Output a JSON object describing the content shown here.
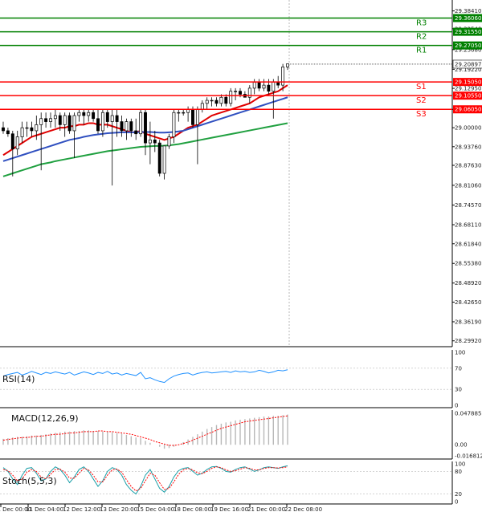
{
  "chart_data": [
    {
      "type": "candlestick",
      "panel": "price",
      "ylim": [
        28.28,
        29.42
      ],
      "y_ticks": [
        "29.38410",
        "29.32540",
        "29.25680",
        "29.19220",
        "29.12950",
        "29.06050",
        "29.00000",
        "28.93760",
        "28.87630",
        "28.81060",
        "28.74570",
        "28.68110",
        "28.61840",
        "28.55380",
        "28.48920",
        "28.42650",
        "28.36190",
        "28.29920"
      ],
      "x_ticks": [
        "11 Dec 00:00",
        "11 Dec 04:00",
        "12 Dec 12:00",
        "13 Dec 20:00",
        "15 Dec 04:00",
        "18 Dec 08:00",
        "19 Dec 16:00",
        "21 Dec 00:00",
        "22 Dec 08:00"
      ],
      "current_price": "29.20897",
      "levels": [
        {
          "name": "R3",
          "value": 29.3606,
          "label": "29.36060",
          "color": "#008000"
        },
        {
          "name": "R2",
          "value": 29.3155,
          "label": "29.31550",
          "color": "#008000"
        },
        {
          "name": "R1",
          "value": 29.2705,
          "label": "29.27050",
          "color": "#008000"
        },
        {
          "name": "S1",
          "value": 29.1505,
          "label": "29.15050",
          "color": "#ff0000"
        },
        {
          "name": "S2",
          "value": 29.1055,
          "label": "29.10550",
          "color": "#ff0000"
        },
        {
          "name": "S3",
          "value": 29.0605,
          "label": "29.06050",
          "color": "#ff0000"
        }
      ],
      "candles": [
        [
          29.0,
          29.02,
          28.98,
          28.99
        ],
        [
          28.99,
          29.0,
          28.97,
          28.98
        ],
        [
          28.98,
          28.99,
          28.84,
          28.93
        ],
        [
          28.93,
          28.99,
          28.91,
          28.97
        ],
        [
          28.97,
          29.02,
          28.95,
          29.0
        ],
        [
          29.0,
          29.02,
          28.97,
          29.0
        ],
        [
          29.0,
          29.02,
          28.97,
          28.99
        ],
        [
          28.99,
          29.04,
          28.96,
          29.01
        ],
        [
          29.01,
          29.05,
          28.86,
          29.03
        ],
        [
          29.03,
          29.05,
          29.0,
          29.02
        ],
        [
          29.02,
          29.05,
          29.0,
          29.03
        ],
        [
          29.03,
          29.06,
          29.0,
          29.04
        ],
        [
          29.04,
          29.05,
          28.99,
          29.01
        ],
        [
          29.01,
          29.05,
          28.97,
          29.04
        ],
        [
          29.04,
          29.05,
          28.98,
          28.99
        ],
        [
          28.99,
          29.05,
          28.9,
          29.04
        ],
        [
          29.04,
          29.06,
          29.02,
          29.05
        ],
        [
          29.05,
          29.06,
          29.01,
          29.04
        ],
        [
          29.04,
          29.06,
          29.02,
          29.05
        ],
        [
          29.05,
          29.06,
          29.02,
          29.03
        ],
        [
          29.03,
          29.06,
          28.98,
          28.99
        ],
        [
          28.99,
          29.06,
          28.97,
          29.05
        ],
        [
          29.05,
          29.06,
          29.0,
          29.02
        ],
        [
          29.02,
          29.06,
          28.81,
          29.04
        ],
        [
          29.04,
          29.06,
          28.97,
          29.02
        ],
        [
          29.02,
          29.04,
          28.97,
          28.99
        ],
        [
          28.99,
          29.03,
          28.96,
          29.02
        ],
        [
          29.02,
          29.03,
          28.97,
          28.99
        ],
        [
          28.99,
          29.03,
          28.96,
          28.98
        ],
        [
          28.98,
          29.06,
          28.97,
          29.05
        ],
        [
          29.05,
          29.06,
          28.91,
          28.95
        ],
        [
          28.95,
          29.02,
          28.88,
          28.96
        ],
        [
          28.96,
          28.99,
          28.92,
          28.95
        ],
        [
          28.95,
          28.96,
          28.84,
          28.85
        ],
        [
          28.85,
          28.94,
          28.83,
          28.94
        ],
        [
          28.94,
          28.98,
          28.93,
          28.97
        ],
        [
          28.97,
          29.06,
          28.95,
          29.05
        ],
        [
          29.05,
          29.06,
          29.02,
          29.05
        ],
        [
          29.05,
          29.06,
          29.04,
          29.05
        ],
        [
          29.05,
          29.07,
          29.02,
          29.06
        ],
        [
          29.06,
          29.07,
          29.0,
          29.01
        ],
        [
          29.01,
          29.07,
          28.88,
          29.06
        ],
        [
          29.06,
          29.09,
          29.05,
          29.08
        ],
        [
          29.08,
          29.1,
          29.06,
          29.09
        ],
        [
          29.09,
          29.1,
          29.07,
          29.09
        ],
        [
          29.09,
          29.1,
          29.07,
          29.08
        ],
        [
          29.08,
          29.11,
          29.07,
          29.1
        ],
        [
          29.1,
          29.11,
          29.07,
          29.08
        ],
        [
          29.08,
          29.13,
          29.07,
          29.12
        ],
        [
          29.12,
          29.13,
          29.09,
          29.12
        ],
        [
          29.12,
          29.13,
          29.1,
          29.11
        ],
        [
          29.11,
          29.12,
          29.1,
          29.1
        ],
        [
          29.1,
          29.14,
          29.08,
          29.13
        ],
        [
          29.13,
          29.16,
          29.11,
          29.15
        ],
        [
          29.15,
          29.16,
          29.12,
          29.13
        ],
        [
          29.13,
          29.16,
          29.12,
          29.14
        ],
        [
          29.14,
          29.16,
          29.11,
          29.12
        ],
        [
          29.12,
          29.16,
          29.03,
          29.15
        ],
        [
          29.15,
          29.17,
          29.13,
          29.14
        ],
        [
          29.14,
          29.21,
          29.12,
          29.2
        ],
        [
          29.2,
          29.21,
          29.19,
          29.21
        ]
      ],
      "ma_series": [
        {
          "color": "#e00000",
          "values": [
            28.91,
            28.92,
            28.93,
            28.94,
            28.95,
            28.96,
            28.97,
            28.975,
            28.98,
            28.985,
            28.99,
            28.995,
            29.0,
            29.0,
            29.005,
            29.005,
            29.01,
            29.01,
            29.015,
            29.015,
            29.01,
            29.01,
            29.01,
            29.005,
            29.0,
            28.995,
            28.99,
            28.985,
            28.985,
            28.99,
            28.98,
            28.975,
            28.97,
            28.965,
            28.96,
            28.965,
            28.97,
            28.98,
            28.99,
            29.0,
            29.005,
            29.01,
            29.02,
            29.03,
            29.04,
            29.045,
            29.05,
            29.055,
            29.06,
            29.065,
            29.07,
            29.075,
            29.08,
            29.09,
            29.1,
            29.105,
            29.11,
            29.115,
            29.12,
            29.13,
            29.14
          ]
        },
        {
          "color": "#3050c0",
          "values": [
            28.89,
            28.895,
            28.9,
            28.905,
            28.91,
            28.915,
            28.92,
            28.925,
            28.93,
            28.935,
            28.94,
            28.945,
            28.95,
            28.955,
            28.96,
            28.963,
            28.966,
            28.97,
            28.973,
            28.976,
            28.978,
            28.98,
            28.982,
            28.983,
            28.984,
            28.985,
            28.985,
            28.985,
            28.985,
            28.986,
            28.986,
            28.986,
            28.985,
            28.984,
            28.984,
            28.985,
            28.986,
            28.988,
            28.99,
            28.995,
            29.0,
            29.005,
            29.01,
            29.015,
            29.02,
            29.025,
            29.03,
            29.035,
            29.04,
            29.045,
            29.05,
            29.055,
            29.06,
            29.065,
            29.07,
            29.075,
            29.08,
            29.085,
            29.09,
            29.095,
            29.1
          ]
        },
        {
          "color": "#20a040",
          "values": [
            28.84,
            28.845,
            28.85,
            28.855,
            28.86,
            28.865,
            28.87,
            28.875,
            28.88,
            28.883,
            28.886,
            28.89,
            28.893,
            28.896,
            28.899,
            28.902,
            28.905,
            28.908,
            28.911,
            28.914,
            28.917,
            28.92,
            28.923,
            28.925,
            28.927,
            28.929,
            28.931,
            28.933,
            28.935,
            28.937,
            28.938,
            28.939,
            28.94,
            28.94,
            28.941,
            28.942,
            28.944,
            28.946,
            28.949,
            28.952,
            28.955,
            28.958,
            28.961,
            28.964,
            28.967,
            28.97,
            28.973,
            28.976,
            28.979,
            28.982,
            28.985,
            28.988,
            28.991,
            28.994,
            28.997,
            29.0,
            29.003,
            29.006,
            29.009,
            29.012,
            29.015
          ]
        }
      ]
    },
    {
      "type": "line",
      "panel": "rsi",
      "label": "RSI(14)",
      "ylim": [
        0,
        100
      ],
      "y_ticks": [
        "100",
        "70",
        "30",
        "0"
      ],
      "series": [
        {
          "color": "#1e90ff",
          "values": [
            55,
            58,
            60,
            62,
            57,
            60,
            64,
            61,
            58,
            62,
            60,
            63,
            61,
            59,
            62,
            57,
            60,
            63,
            61,
            58,
            62,
            60,
            64,
            59,
            61,
            57,
            60,
            58,
            56,
            62,
            50,
            52,
            48,
            45,
            43,
            50,
            55,
            58,
            60,
            61,
            57,
            60,
            62,
            63,
            61,
            62,
            63,
            64,
            62,
            65,
            63,
            64,
            62,
            63,
            66,
            64,
            61,
            63,
            66,
            65,
            67
          ]
        }
      ]
    },
    {
      "type": "bar",
      "panel": "macd",
      "label": "MACD(12,26,9)",
      "ylim": [
        -0.016812,
        0.047885
      ],
      "y_ticks": [
        "0.047885",
        "0.00",
        "-0.016812"
      ],
      "values": [
        0.009,
        0.01,
        0.011,
        0.012,
        0.012,
        0.013,
        0.014,
        0.014,
        0.015,
        0.016,
        0.017,
        0.018,
        0.019,
        0.02,
        0.02,
        0.021,
        0.021,
        0.022,
        0.022,
        0.021,
        0.021,
        0.02,
        0.02,
        0.019,
        0.018,
        0.017,
        0.015,
        0.013,
        0.011,
        0.01,
        0.006,
        0.003,
        0.0,
        -0.003,
        -0.006,
        -0.005,
        -0.003,
        0.0,
        0.004,
        0.008,
        0.012,
        0.016,
        0.02,
        0.024,
        0.027,
        0.03,
        0.032,
        0.034,
        0.035,
        0.037,
        0.038,
        0.039,
        0.04,
        0.041,
        0.042,
        0.043,
        0.043,
        0.044,
        0.044,
        0.045,
        0.046
      ],
      "signal": [
        0.007,
        0.008,
        0.009,
        0.01,
        0.011,
        0.011,
        0.012,
        0.013,
        0.013,
        0.014,
        0.015,
        0.016,
        0.016,
        0.017,
        0.018,
        0.018,
        0.019,
        0.02,
        0.02,
        0.02,
        0.021,
        0.021,
        0.02,
        0.02,
        0.019,
        0.018,
        0.017,
        0.016,
        0.014,
        0.012,
        0.01,
        0.008,
        0.005,
        0.003,
        0.001,
        -0.001,
        -0.001,
        0.0,
        0.002,
        0.004,
        0.007,
        0.01,
        0.013,
        0.016,
        0.019,
        0.022,
        0.025,
        0.027,
        0.029,
        0.031,
        0.033,
        0.035,
        0.036,
        0.037,
        0.038,
        0.039,
        0.04,
        0.041,
        0.042,
        0.043,
        0.044
      ]
    },
    {
      "type": "line",
      "panel": "stoch",
      "label": "Stoch(5,5,3)",
      "ylim": [
        0,
        100
      ],
      "y_ticks": [
        "100",
        "80",
        "20",
        "0"
      ],
      "series": [
        {
          "color": "#1a9fa8",
          "values": [
            90,
            80,
            60,
            45,
            70,
            88,
            90,
            75,
            55,
            60,
            80,
            92,
            85,
            70,
            50,
            65,
            85,
            92,
            80,
            60,
            40,
            55,
            80,
            90,
            85,
            70,
            45,
            30,
            20,
            40,
            70,
            85,
            60,
            35,
            25,
            40,
            65,
            82,
            88,
            90,
            80,
            70,
            75,
            85,
            92,
            93,
            88,
            80,
            78,
            85,
            90,
            92,
            86,
            80,
            84,
            90,
            92,
            90,
            88,
            92,
            95
          ]
        },
        {
          "color": "#ff0000",
          "values": [
            85,
            82,
            70,
            55,
            60,
            78,
            85,
            80,
            65,
            60,
            72,
            85,
            86,
            78,
            62,
            62,
            75,
            88,
            84,
            70,
            52,
            52,
            70,
            84,
            86,
            78,
            58,
            40,
            28,
            35,
            55,
            75,
            70,
            50,
            32,
            35,
            52,
            72,
            84,
            88,
            84,
            76,
            74,
            80,
            88,
            92,
            90,
            84,
            80,
            82,
            86,
            90,
            88,
            84,
            84,
            88,
            90,
            90,
            89,
            90,
            92
          ]
        }
      ]
    }
  ]
}
